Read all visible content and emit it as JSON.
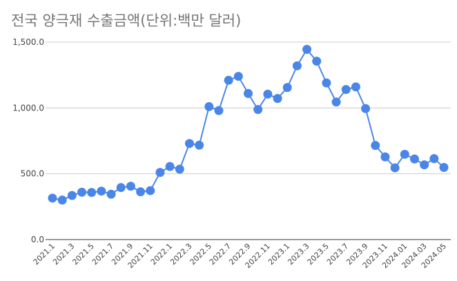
{
  "title": "전국 양극재 수출금액(단위:백만 달러)",
  "colors": {
    "line": "#4a86e8",
    "grid": "#cccccc",
    "axis": "#333333"
  },
  "chart_data": {
    "type": "line",
    "title": "전국 양극재 수출금액(단위:백만 달러)",
    "xlabel": "",
    "ylabel": "",
    "ylim": [
      0,
      1500
    ],
    "y_ticks": [
      "0.0",
      "500.0",
      "1,000.0",
      "1,500.0"
    ],
    "y_tick_values": [
      0,
      500,
      1000,
      1500
    ],
    "grid": true,
    "legend": "none",
    "x_tick_labels": [
      "2021.1",
      "2021.3",
      "2021.5",
      "2021.7",
      "2021.9",
      "2021.11",
      "2022.1",
      "2022.3",
      "2022.5",
      "2022.7",
      "2022.9",
      "2022.11",
      "2023.1",
      "2023.3",
      "2023.5",
      "2023.7",
      "2023.9",
      "2023.11",
      "2024.01",
      "2024.03",
      "2024.05"
    ],
    "x": [
      "2021.1",
      "2021.2",
      "2021.3",
      "2021.4",
      "2021.5",
      "2021.6",
      "2021.7",
      "2021.8",
      "2021.9",
      "2021.10",
      "2021.11",
      "2021.12",
      "2022.1",
      "2022.2",
      "2022.3",
      "2022.4",
      "2022.5",
      "2022.6",
      "2022.7",
      "2022.8",
      "2022.9",
      "2022.10",
      "2022.11",
      "2022.12",
      "2023.1",
      "2023.2",
      "2023.3",
      "2023.4",
      "2023.5",
      "2023.6",
      "2023.7",
      "2023.8",
      "2023.9",
      "2023.10",
      "2023.11",
      "2023.12",
      "2024.01",
      "2024.02",
      "2024.03",
      "2024.04",
      "2024.05"
    ],
    "series": [
      {
        "values": [
          315,
          300,
          335,
          360,
          358,
          368,
          345,
          395,
          405,
          363,
          372,
          510,
          555,
          535,
          730,
          717,
          1010,
          980,
          1210,
          1240,
          1110,
          988,
          1105,
          1072,
          1155,
          1320,
          1445,
          1355,
          1190,
          1045,
          1140,
          1160,
          995,
          715,
          628,
          545,
          648,
          612,
          568,
          615,
          548
        ]
      }
    ]
  }
}
